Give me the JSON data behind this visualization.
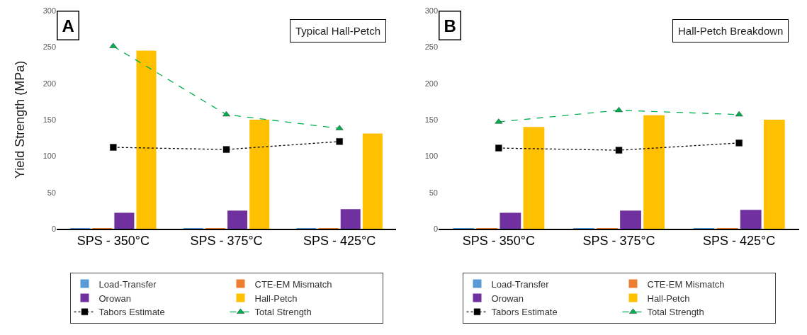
{
  "chart_data": [
    {
      "type": "bar",
      "title": "Typical Hall-Petch",
      "annotations": [
        "A"
      ],
      "ylabel": "Yield Strength (MPa)",
      "categories": [
        "SPS - 350°C",
        "SPS - 375°C",
        "SPS - 425°C"
      ],
      "ylim": [
        0,
        300
      ],
      "yticks": [
        0,
        50,
        100,
        150,
        200,
        250,
        300
      ],
      "grid": false,
      "legend": "bottom",
      "series": [
        {
          "name": "Load-Transfer",
          "color": "#5b9bd5",
          "values": [
            1,
            1,
            1
          ]
        },
        {
          "name": "CTE-EM Mismatch",
          "color": "#ed7d31",
          "values": [
            1,
            1,
            1
          ]
        },
        {
          "name": "Orowan",
          "color": "#7030a0",
          "values": [
            22,
            25,
            27
          ]
        },
        {
          "name": "Hall-Petch",
          "color": "#ffc000",
          "values": [
            245,
            150,
            131
          ]
        },
        {
          "name": "Tabors Estimate",
          "type": "line",
          "color": "#000000",
          "marker": "square",
          "line_style": "dotted",
          "values": [
            112,
            109,
            120
          ]
        },
        {
          "name": "Total Strength",
          "type": "line",
          "color": "#00b050",
          "marker": "triangle",
          "line_style": "dashed",
          "values": [
            251,
            157,
            138
          ]
        }
      ]
    },
    {
      "type": "bar",
      "title": "Hall-Petch Breakdown",
      "annotations": [
        "B"
      ],
      "categories": [
        "SPS - 350°C",
        "SPS - 375°C",
        "SPS - 425°C"
      ],
      "ylim": [
        0,
        300
      ],
      "yticks": [
        0,
        50,
        100,
        150,
        200,
        250,
        300
      ],
      "grid": false,
      "legend": "bottom",
      "series": [
        {
          "name": "Load-Transfer",
          "color": "#5b9bd5",
          "values": [
            1,
            1,
            1
          ]
        },
        {
          "name": "CTE-EM Mismatch",
          "color": "#ed7d31",
          "values": [
            1,
            1,
            1
          ]
        },
        {
          "name": "Orowan",
          "color": "#7030a0",
          "values": [
            22,
            25,
            26
          ]
        },
        {
          "name": "Hall-Petch",
          "color": "#ffc000",
          "values": [
            140,
            156,
            150
          ]
        },
        {
          "name": "Tabors Estimate",
          "type": "line",
          "color": "#000000",
          "marker": "square",
          "line_style": "dotted",
          "values": [
            111,
            108,
            118
          ]
        },
        {
          "name": "Total Strength",
          "type": "line",
          "color": "#00b050",
          "marker": "triangle",
          "line_style": "dashed",
          "values": [
            147,
            163,
            157
          ]
        }
      ]
    }
  ]
}
